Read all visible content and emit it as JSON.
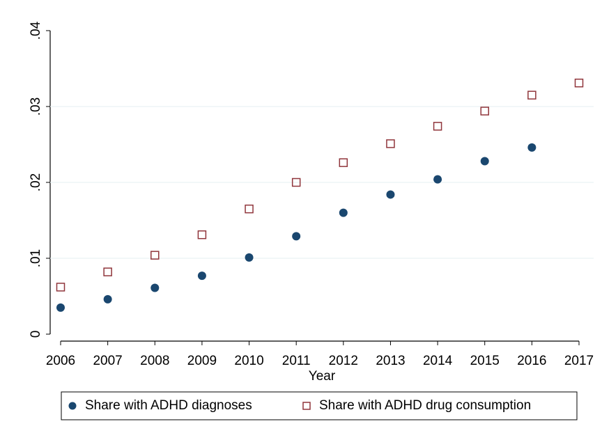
{
  "chart_data": {
    "type": "scatter",
    "x_label": "Year",
    "x": [
      2006,
      2007,
      2008,
      2009,
      2010,
      2011,
      2012,
      2013,
      2014,
      2015,
      2016,
      2017
    ],
    "series": [
      {
        "name": "Share with ADHD diagnoses",
        "color": "#1a476f",
        "marker": "circle",
        "values": [
          0.0035,
          0.0046,
          0.0061,
          0.0077,
          0.0101,
          0.0129,
          0.016,
          0.0184,
          0.0204,
          0.0228,
          0.0246,
          null
        ]
      },
      {
        "name": "Share with ADHD drug consumption",
        "color": "#90353b",
        "marker": "square",
        "values": [
          0.0062,
          0.0082,
          0.0104,
          0.0131,
          0.0165,
          0.02,
          0.0226,
          0.0251,
          0.0274,
          0.0294,
          0.0315,
          0.0331
        ]
      }
    ],
    "xlim": [
      2006,
      2017
    ],
    "xticks": [
      2006,
      2007,
      2008,
      2009,
      2010,
      2011,
      2012,
      2013,
      2014,
      2015,
      2016,
      2017
    ],
    "ylim": [
      0,
      0.04
    ],
    "yticks": [
      0,
      {
        "value": 0.01,
        "label": ".01"
      },
      {
        "value": 0.02,
        "label": ".02"
      },
      {
        "value": 0.03,
        "label": ".03"
      },
      {
        "value": 0.04,
        "label": ".04"
      }
    ],
    "grid": true,
    "legend": "bottom"
  }
}
